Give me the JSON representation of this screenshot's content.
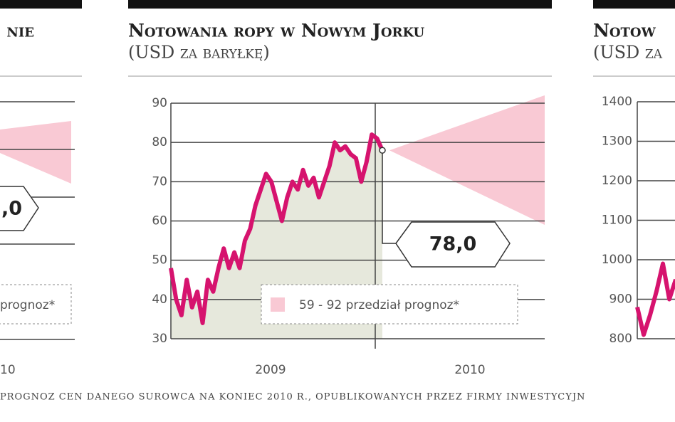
{
  "chart_data": [
    {
      "type": "line",
      "title": "Notowania ropy w Nowym Jorku",
      "subtitle": "(USD za baryłkę)",
      "xlabels": [
        "2009",
        "2010"
      ],
      "values": [
        48,
        40,
        36,
        45,
        38,
        42,
        34,
        45,
        42,
        48,
        53,
        48,
        52,
        48,
        55,
        58,
        64,
        68,
        72,
        70,
        65,
        60,
        66,
        70,
        68,
        73,
        69,
        71,
        66,
        70,
        74,
        80,
        78,
        79,
        77,
        76,
        70,
        75,
        82,
        81,
        78
      ],
      "color": "#d6136e",
      "ylim": [
        30,
        90
      ],
      "yticks": [
        30,
        40,
        50,
        60,
        70,
        80,
        90
      ],
      "grid": true,
      "forecast": {
        "start": 78,
        "low": 59,
        "high": 92,
        "label": "78,0",
        "legend": "59 - 92 przedział prognoz*",
        "color": "#f9c9d4"
      }
    },
    {
      "type": "fragment-left",
      "title": "nie",
      "callout": ",0",
      "legend": "prognoz*",
      "xlabel": "10"
    },
    {
      "type": "fragment-right",
      "title": "Notow",
      "subtitle": "(USD za",
      "values": [
        880,
        810,
        860,
        920,
        990,
        900,
        950
      ],
      "color": "#d6136e",
      "ylim": [
        800,
        1400
      ],
      "yticks": [
        800,
        900,
        1000,
        1100,
        1200,
        1300,
        1400
      ]
    }
  ],
  "footnote": "PROGNOZ CEN DANEGO SUROWCA NA KONIEC 2010 R., OPUBLIKOWANYCH PRZEZ FIRMY INWESTYCYJN"
}
